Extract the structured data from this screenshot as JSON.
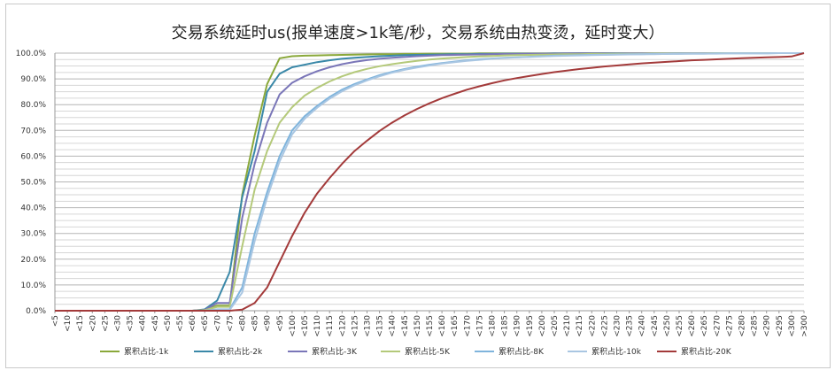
{
  "chart_data": {
    "type": "line",
    "title": "交易系统延时us(报单速度>1k笔/秒，交易系统由热变烫，延时变大）",
    "xlabel": "",
    "ylabel": "",
    "ylim": [
      0,
      100
    ],
    "y_ticks": [
      "0.0%",
      "10.0%",
      "20.0%",
      "30.0%",
      "40.0%",
      "50.0%",
      "60.0%",
      "70.0%",
      "80.0%",
      "90.0%",
      "100.0%"
    ],
    "grid": "horizontal, every 2.5%",
    "legend_position": "bottom",
    "categories": [
      "<5",
      "<10",
      "<15",
      "<20",
      "<25",
      "<30",
      "<35",
      "<40",
      "<45",
      "<50",
      "<55",
      "<60",
      "<65",
      "<70",
      "<75",
      "<80",
      "<85",
      "<90",
      "<95",
      "<100",
      "<105",
      "<110",
      "<115",
      "<120",
      "<125",
      "<130",
      "<135",
      "<140",
      "<145",
      "<150",
      "<155",
      "<160",
      "<165",
      "<170",
      "<175",
      "<180",
      "<185",
      "<190",
      "<195",
      "<200",
      "<205",
      "<210",
      "<215",
      "<220",
      "<225",
      "<230",
      "<235",
      "<240",
      "<245",
      "<250",
      "<255",
      "<260",
      "<265",
      "<270",
      "<275",
      "<280",
      "<285",
      "<290",
      "<295",
      "<300",
      ">300"
    ],
    "series": [
      {
        "name": "累积占比-1k",
        "color": "#8aa83a",
        "values": [
          0,
          0,
          0,
          0,
          0,
          0,
          0,
          0,
          0,
          0,
          0,
          0,
          0.3,
          2,
          2,
          45,
          68,
          88,
          98,
          98.8,
          99,
          99.1,
          99.2,
          99.3,
          99.4,
          99.5,
          99.6,
          99.6,
          99.7,
          99.7,
          99.8,
          99.8,
          99.8,
          99.8,
          99.9,
          99.9,
          99.9,
          99.9,
          99.9,
          99.9,
          99.9,
          99.9,
          100,
          100,
          100,
          100,
          100,
          100,
          100,
          100,
          100,
          100,
          100,
          100,
          100,
          100,
          100,
          100,
          100,
          100,
          100
        ]
      },
      {
        "name": "累积占比-2k",
        "color": "#3a88a8",
        "values": [
          0,
          0,
          0,
          0,
          0,
          0,
          0,
          0,
          0,
          0,
          0,
          0,
          0.5,
          4,
          15,
          44,
          62,
          85,
          92,
          94.5,
          95.5,
          96.5,
          97.2,
          97.8,
          98.2,
          98.5,
          98.8,
          99,
          99.2,
          99.3,
          99.4,
          99.5,
          99.6,
          99.6,
          99.7,
          99.7,
          99.8,
          99.8,
          99.8,
          99.8,
          99.9,
          99.9,
          99.9,
          99.9,
          99.9,
          100,
          100,
          100,
          100,
          100,
          100,
          100,
          100,
          100,
          100,
          100,
          100,
          100,
          100,
          100,
          100
        ]
      },
      {
        "name": "累积占比-3K",
        "color": "#7a76b8",
        "values": [
          0,
          0,
          0,
          0,
          0,
          0,
          0,
          0,
          0,
          0,
          0,
          0,
          0.3,
          3,
          3,
          36,
          57,
          73,
          84,
          88.5,
          91,
          93,
          94.5,
          95.7,
          96.6,
          97.3,
          97.8,
          98.2,
          98.5,
          98.8,
          99,
          99.2,
          99.3,
          99.4,
          99.5,
          99.6,
          99.7,
          99.7,
          99.8,
          99.8,
          99.8,
          99.9,
          99.9,
          99.9,
          99.9,
          99.9,
          100,
          100,
          100,
          100,
          100,
          100,
          100,
          100,
          100,
          100,
          100,
          100,
          100,
          100,
          100
        ]
      },
      {
        "name": "累积占比-5K",
        "color": "#b4c97a",
        "values": [
          0,
          0,
          0,
          0,
          0,
          0,
          0,
          0,
          0,
          0,
          0,
          0,
          0.2,
          1.5,
          1.5,
          25,
          47,
          62,
          73,
          79,
          83.5,
          86.5,
          89,
          91,
          92.6,
          93.9,
          94.9,
          95.7,
          96.4,
          97,
          97.5,
          97.9,
          98.2,
          98.5,
          98.7,
          98.9,
          99.1,
          99.2,
          99.3,
          99.4,
          99.5,
          99.6,
          99.6,
          99.7,
          99.7,
          99.8,
          99.8,
          99.8,
          99.9,
          99.9,
          99.9,
          99.9,
          99.9,
          100,
          100,
          100,
          100,
          100,
          100,
          100,
          100
        ]
      },
      {
        "name": "累积占比-8K",
        "color": "#7fb4dc",
        "values": [
          0,
          0,
          0,
          0,
          0,
          0,
          0,
          0,
          0,
          0,
          0,
          0,
          0,
          0.5,
          0.5,
          9,
          30,
          46,
          60,
          70,
          75.5,
          79.5,
          83,
          85.8,
          88,
          89.8,
          91.4,
          92.7,
          93.8,
          94.7,
          95.5,
          96.1,
          96.7,
          97.2,
          97.6,
          97.9,
          98.2,
          98.4,
          98.6,
          98.8,
          99,
          99.1,
          99.2,
          99.3,
          99.4,
          99.5,
          99.6,
          99.6,
          99.7,
          99.7,
          99.8,
          99.8,
          99.8,
          99.9,
          99.9,
          99.9,
          99.9,
          99.9,
          100,
          100,
          100
        ]
      },
      {
        "name": "累积占比-10k",
        "color": "#a9c6e2",
        "values": [
          0,
          0,
          0,
          0,
          0,
          0,
          0,
          0,
          0,
          0,
          0,
          0,
          0,
          0.3,
          0.3,
          7,
          27,
          44,
          58,
          68.5,
          74.5,
          78.8,
          82.3,
          85.2,
          87.5,
          89.4,
          91,
          92.4,
          93.5,
          94.4,
          95.2,
          95.9,
          96.5,
          97,
          97.4,
          97.8,
          98.1,
          98.3,
          98.5,
          98.7,
          98.9,
          99,
          99.1,
          99.2,
          99.3,
          99.4,
          99.5,
          99.6,
          99.6,
          99.7,
          99.7,
          99.8,
          99.8,
          99.8,
          99.9,
          99.9,
          99.9,
          99.9,
          100,
          100,
          100
        ]
      },
      {
        "name": "累积占比-20K",
        "color": "#a33a3a",
        "values": [
          0,
          0,
          0,
          0,
          0,
          0,
          0,
          0,
          0,
          0,
          0,
          0,
          0,
          0,
          0,
          0.4,
          3,
          9,
          19,
          29,
          38,
          45.5,
          51.5,
          57,
          62,
          66,
          69.8,
          73,
          75.8,
          78.3,
          80.5,
          82.5,
          84.2,
          85.8,
          87.1,
          88.3,
          89.4,
          90.3,
          91.1,
          91.9,
          92.6,
          93.2,
          93.8,
          94.3,
          94.8,
          95.2,
          95.6,
          96,
          96.3,
          96.6,
          96.9,
          97.2,
          97.4,
          97.6,
          97.8,
          98,
          98.2,
          98.4,
          98.5,
          98.7,
          100
        ]
      }
    ]
  }
}
